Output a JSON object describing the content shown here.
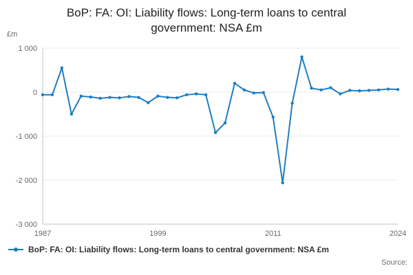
{
  "page": {
    "title": "BoP: FA: OI: Liability flows: Long-term loans to central government: NSA £m",
    "source_label": "Source:"
  },
  "chart_data": {
    "type": "line",
    "title": "BoP: FA: OI: Liability flows: Long-term loans to central government: NSA £m",
    "xlabel": "",
    "ylabel": "£m",
    "unit_label": "£m",
    "color": "#1e7dc0",
    "grid": true,
    "legend_position": "bottom-left",
    "ylim": [
      -3000,
      1000
    ],
    "x": [
      1987,
      1988,
      1989,
      1990,
      1991,
      1992,
      1993,
      1994,
      1995,
      1996,
      1997,
      1998,
      1999,
      2000,
      2001,
      2002,
      2003,
      2004,
      2005,
      2006,
      2007,
      2008,
      2009,
      2010,
      2011,
      2012,
      2013,
      2014,
      2015,
      2016,
      2017,
      2018,
      2019,
      2020,
      2021,
      2022,
      2023,
      2024
    ],
    "series": [
      {
        "name": "BoP: FA: OI: Liability flows: Long-term loans to central government: NSA £m",
        "values": [
          -60,
          -60,
          550,
          -500,
          -90,
          -110,
          -140,
          -120,
          -130,
          -100,
          -120,
          -240,
          -90,
          -120,
          -130,
          -60,
          -40,
          -60,
          -920,
          -700,
          200,
          50,
          -20,
          -10,
          -570,
          -2060,
          -250,
          800,
          90,
          50,
          100,
          -40,
          40,
          30,
          40,
          50,
          70,
          60
        ]
      }
    ],
    "xticks": [
      1987,
      1999,
      2011,
      2024
    ],
    "yticks": [
      {
        "value": 1000,
        "label": "1 000"
      },
      {
        "value": 0,
        "label": "0"
      },
      {
        "value": -1000,
        "label": "-1 000"
      },
      {
        "value": -2000,
        "label": "-2 000"
      },
      {
        "value": -3000,
        "label": "-3 000"
      }
    ],
    "legend": {
      "label": "BoP: FA: OI: Liability flows: Long-term loans to central government: NSA £m"
    }
  }
}
